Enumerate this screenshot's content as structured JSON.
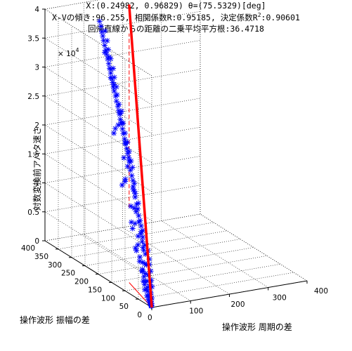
{
  "chart_data": {
    "type": "scatter",
    "title": {
      "line1": "X:(0.24982, 0.96829) θ=(75.5329)[deg]",
      "line2_prefix": "X-Vの傾き:96.255, 相関係数R:0.95185, 決定係数R",
      "line2_sup": "2",
      "line2_suffix": ":0.90601",
      "line3": "回帰直線からの距離の二乗平均平方根:36.4718"
    },
    "xlabel": "操作波形 周期の差",
    "ylabel": "操作波形 振幅の差",
    "zlabel": "対数変換前アバタ速さ",
    "zscale_label": "× 10",
    "zscale_exp": "4",
    "xlim": [
      0,
      400
    ],
    "ylim": [
      0,
      400
    ],
    "zlim": [
      0,
      40000
    ],
    "x_ticks": [
      "0",
      "100",
      "200",
      "300",
      "400"
    ],
    "y_ticks": [
      "0",
      "50",
      "100",
      "150",
      "200",
      "250",
      "300",
      "350",
      "400"
    ],
    "z_ticks": [
      "0",
      "0.5",
      "1",
      "1.5",
      "2",
      "2.5",
      "3",
      "3.5",
      "4"
    ],
    "grid": true,
    "marker": "*",
    "colors": {
      "points": "#0000ff",
      "regression": "#ff0000",
      "axes": "#000000"
    },
    "regression_line_xy": {
      "direction": [
        0.24982,
        0.96829
      ],
      "angle_deg": 75.5329
    },
    "series": [
      {
        "values": [
          [
            3,
            4,
            1500
          ],
          [
            6,
            12,
            2100
          ],
          [
            2,
            8,
            800
          ],
          [
            10,
            20,
            3300
          ],
          [
            8,
            28,
            2600
          ],
          [
            14,
            22,
            3900
          ],
          [
            12,
            35,
            3400
          ],
          [
            5,
            18,
            1400
          ],
          [
            18,
            30,
            5200
          ],
          [
            15,
            45,
            4400
          ],
          [
            9,
            40,
            2700
          ],
          [
            20,
            38,
            6100
          ],
          [
            22,
            52,
            5600
          ],
          [
            7,
            26,
            2000
          ],
          [
            25,
            60,
            7200
          ],
          [
            13,
            48,
            3800
          ],
          [
            16,
            58,
            4700
          ],
          [
            11,
            15,
            3000
          ],
          [
            24,
            44,
            6800
          ],
          [
            28,
            55,
            7900
          ],
          [
            19,
            62,
            5800
          ],
          [
            30,
            70,
            8400
          ],
          [
            21,
            75,
            6300
          ],
          [
            26,
            68,
            7600
          ],
          [
            33,
            82,
            9400
          ],
          [
            35,
            90,
            10100
          ],
          [
            29,
            78,
            8800
          ],
          [
            38,
            95,
            10900
          ],
          [
            40,
            102,
            11600
          ],
          [
            36,
            86,
            10400
          ],
          [
            31,
            96,
            9200
          ],
          [
            42,
            110,
            12200
          ],
          [
            45,
            118,
            13100
          ],
          [
            39,
            105,
            11300
          ],
          [
            47,
            125,
            13700
          ],
          [
            44,
            130,
            12900
          ],
          [
            50,
            135,
            14600
          ],
          [
            48,
            120,
            14000
          ],
          [
            53,
            142,
            15400
          ],
          [
            55,
            150,
            15900
          ],
          [
            52,
            138,
            15100
          ],
          [
            58,
            155,
            16800
          ],
          [
            60,
            162,
            17400
          ],
          [
            57,
            148,
            16500
          ],
          [
            62,
            170,
            18100
          ],
          [
            64,
            165,
            18700
          ],
          [
            66,
            178,
            19200
          ],
          [
            63,
            182,
            18400
          ],
          [
            68,
            185,
            19800
          ],
          [
            70,
            192,
            20300
          ],
          [
            67,
            175,
            19500
          ],
          [
            72,
            198,
            20900
          ],
          [
            74,
            205,
            21600
          ],
          [
            71,
            188,
            20700
          ],
          [
            76,
            212,
            22100
          ],
          [
            78,
            220,
            22800
          ],
          [
            75,
            200,
            21900
          ],
          [
            80,
            226,
            23400
          ],
          [
            82,
            232,
            24100
          ],
          [
            79,
            215,
            23000
          ],
          [
            84,
            240,
            24600
          ],
          [
            86,
            246,
            25300
          ],
          [
            83,
            228,
            24300
          ],
          [
            88,
            252,
            25700
          ],
          [
            90,
            258,
            26300
          ],
          [
            87,
            244,
            25500
          ],
          [
            92,
            266,
            26900
          ],
          [
            94,
            272,
            27600
          ],
          [
            91,
            255,
            26700
          ],
          [
            96,
            280,
            28200
          ],
          [
            98,
            286,
            28700
          ],
          [
            95,
            268,
            27900
          ],
          [
            100,
            292,
            29300
          ],
          [
            102,
            298,
            29800
          ],
          [
            99,
            276,
            29000
          ],
          [
            104,
            305,
            30500
          ],
          [
            106,
            312,
            31100
          ],
          [
            103,
            290,
            30200
          ],
          [
            108,
            318,
            31700
          ],
          [
            110,
            325,
            32300
          ],
          [
            107,
            300,
            31400
          ],
          [
            112,
            332,
            32900
          ],
          [
            114,
            338,
            33400
          ],
          [
            111,
            315,
            32600
          ],
          [
            116,
            345,
            34000
          ],
          [
            118,
            352,
            34600
          ],
          [
            115,
            330,
            33700
          ],
          [
            120,
            358,
            35200
          ],
          [
            122,
            365,
            35700
          ],
          [
            119,
            340,
            34900
          ],
          [
            125,
            372,
            36400
          ],
          [
            127,
            380,
            37000
          ],
          [
            124,
            355,
            36100
          ],
          [
            96,
            300,
            33500
          ],
          [
            80,
            270,
            31000
          ],
          [
            140,
            380,
            31500
          ],
          [
            130,
            330,
            27500
          ],
          [
            135,
            350,
            29500
          ],
          [
            60,
            200,
            25500
          ],
          [
            55,
            180,
            22500
          ],
          [
            115,
            280,
            24500
          ],
          [
            120,
            300,
            21500
          ],
          [
            45,
            150,
            20500
          ],
          [
            140,
            340,
            19500
          ],
          [
            100,
            250,
            17500
          ],
          [
            35,
            120,
            16500
          ],
          [
            150,
            360,
            18000
          ],
          [
            90,
            230,
            14500
          ],
          [
            25,
            95,
            13500
          ],
          [
            110,
            260,
            13000
          ],
          [
            70,
            180,
            11500
          ],
          [
            20,
            70,
            10500
          ],
          [
            130,
            300,
            11000
          ],
          [
            60,
            150,
            9500
          ],
          [
            15,
            55,
            8600
          ],
          [
            85,
            200,
            8000
          ],
          [
            40,
            110,
            7200
          ],
          [
            10,
            40,
            6300
          ],
          [
            95,
            210,
            6500
          ],
          [
            50,
            130,
            5500
          ],
          [
            8,
            25,
            4800
          ],
          [
            75,
            170,
            4500
          ],
          [
            30,
            80,
            3700
          ],
          [
            6,
            16,
            3100
          ],
          [
            65,
            140,
            3200
          ],
          [
            24,
            60,
            2500
          ],
          [
            4,
            10,
            1900
          ],
          [
            55,
            115,
            2300
          ],
          [
            18,
            45,
            1600
          ],
          [
            3,
            6,
            1100
          ],
          [
            40,
            90,
            1500
          ],
          [
            12,
            30,
            900
          ],
          [
            2,
            3,
            600
          ],
          [
            30,
            70,
            700
          ],
          [
            9,
            20,
            400
          ],
          [
            1,
            2,
            300
          ],
          [
            22,
            50,
            350
          ],
          [
            6,
            12,
            250
          ],
          [
            15,
            35,
            200
          ],
          [
            4,
            8,
            150
          ],
          [
            10,
            22,
            120
          ],
          [
            2,
            5,
            80
          ],
          [
            7,
            15,
            60
          ],
          [
            3,
            7,
            50
          ]
        ]
      }
    ]
  }
}
